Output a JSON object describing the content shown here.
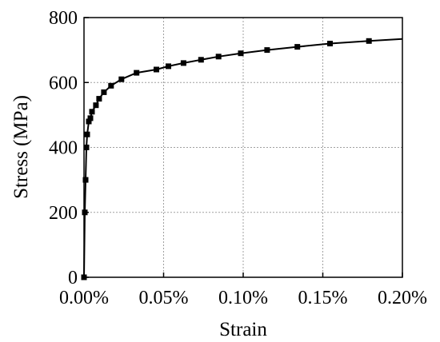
{
  "chart_data": {
    "type": "line",
    "title": "",
    "xlabel": "Strain",
    "ylabel": "Stress (MPa)",
    "xlim": [
      0,
      0.2
    ],
    "ylim": [
      0,
      800
    ],
    "grid": true,
    "x_unit": "%",
    "x_ticks": [
      0,
      0.05,
      0.1,
      0.15,
      0.2
    ],
    "x_tick_labels": [
      "0.00%",
      "0.05%",
      "0.10%",
      "0.15%",
      "0.20%"
    ],
    "y_ticks": [
      0,
      200,
      400,
      600,
      800
    ],
    "y_tick_labels": [
      "0",
      "200",
      "400",
      "600",
      "800"
    ],
    "marker": "square",
    "color": "#000000",
    "series": [
      {
        "x": [
          0.0,
          0.0005,
          0.001,
          0.0015,
          0.002,
          0.003,
          0.004,
          0.005,
          0.0075,
          0.0095,
          0.0125,
          0.017,
          0.0235,
          0.033,
          0.0455,
          0.053,
          0.0625,
          0.0735,
          0.0845,
          0.0985,
          0.115,
          0.134,
          0.1545,
          0.179
        ],
        "y": [
          0,
          200,
          300,
          400,
          440,
          480,
          490,
          510,
          530,
          550,
          570,
          590,
          610,
          630,
          640,
          650,
          660,
          670,
          680,
          690,
          700,
          710,
          720,
          728
        ],
        "curve_x": [
          0.0,
          0.0005,
          0.001,
          0.0015,
          0.002,
          0.003,
          0.004,
          0.005,
          0.0075,
          0.0095,
          0.0125,
          0.017,
          0.0235,
          0.033,
          0.0455,
          0.053,
          0.0625,
          0.0735,
          0.0845,
          0.0985,
          0.115,
          0.134,
          0.1545,
          0.179,
          0.2
        ],
        "curve_y": [
          0,
          200,
          300,
          400,
          440,
          480,
          490,
          510,
          530,
          550,
          570,
          590,
          610,
          630,
          640,
          650,
          660,
          670,
          680,
          690,
          700,
          710,
          720,
          728,
          734
        ]
      }
    ]
  }
}
